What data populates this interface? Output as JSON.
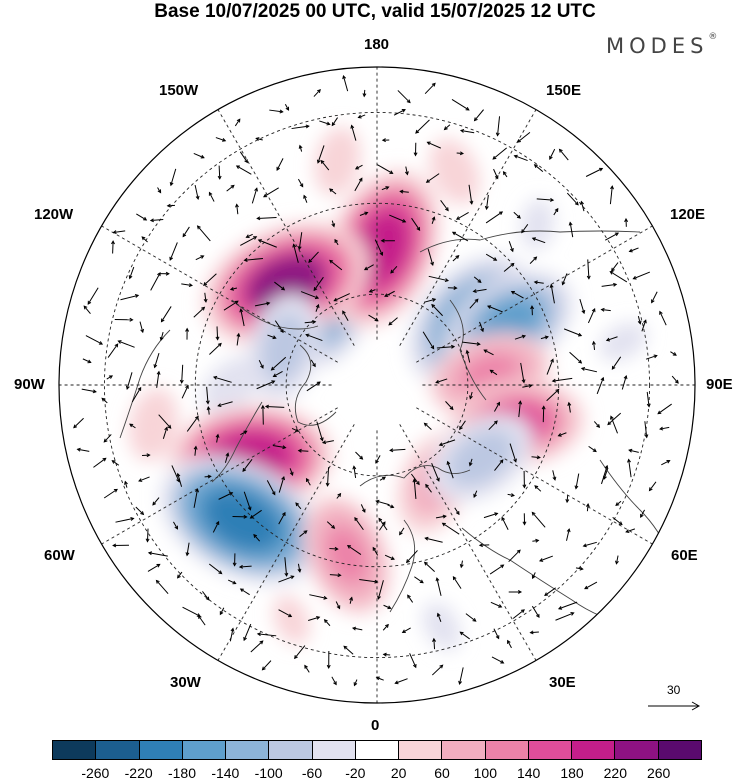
{
  "title": "Base 10/07/2025 00 UTC, valid 15/07/2025 12 UTC",
  "brand": "MODES",
  "brand_mark": "®",
  "longitude_labels": {
    "top": "180",
    "bottom": "0",
    "left": "90W",
    "right": "90E",
    "upper_left": "150W",
    "upper_right": "150E",
    "mid_upper_left": "120W",
    "mid_upper_right": "120E",
    "mid_lower_left": "60W",
    "mid_lower_right": "60E",
    "lower_left": "30W",
    "lower_right": "30E"
  },
  "vector_scale": {
    "value": "30",
    "icon": "arrow-right-icon"
  },
  "colorbar": {
    "colors": [
      "#0d3a5c",
      "#1c5e8f",
      "#2f7fb6",
      "#5f9fcc",
      "#8db4d8",
      "#bcc8e2",
      "#e2e2f0",
      "#ffffff",
      "#f8d4d8",
      "#f2aec0",
      "#ec82a8",
      "#e04d9a",
      "#c41e8a",
      "#8e1282",
      "#5a0a6e"
    ],
    "labels": [
      "-260",
      "-220",
      "-180",
      "-140",
      "-100",
      "-60",
      "-20",
      "20",
      "60",
      "100",
      "140",
      "180",
      "220",
      "260"
    ]
  },
  "anomalies": [
    {
      "lon": -150,
      "lat": 68,
      "value": -150
    },
    {
      "lon": 178,
      "lat": 60,
      "value": 200
    },
    {
      "lon": -138,
      "lat": 60,
      "value": 220
    },
    {
      "lon": 125,
      "lat": 65,
      "value": -170
    },
    {
      "lon": 115,
      "lat": 58,
      "value": -150
    },
    {
      "lon": 95,
      "lat": 65,
      "value": 120
    },
    {
      "lon": 75,
      "lat": 58,
      "value": 140
    },
    {
      "lon": -112,
      "lat": 68,
      "value": -90
    },
    {
      "lon": -90,
      "lat": 58,
      "value": -40
    },
    {
      "lon": -60,
      "lat": 58,
      "value": 200
    },
    {
      "lon": -45,
      "lat": 48,
      "value": -220
    },
    {
      "lon": -10,
      "lat": 52,
      "value": 120
    },
    {
      "lon": 30,
      "lat": 65,
      "value": 80
    },
    {
      "lon": 55,
      "lat": 62,
      "value": -100
    },
    {
      "lon": -80,
      "lat": 40,
      "value": 50
    },
    {
      "lon": 160,
      "lat": 40,
      "value": 40
    },
    {
      "lon": -170,
      "lat": 40,
      "value": 40
    },
    {
      "lon": 135,
      "lat": 40,
      "value": -30
    },
    {
      "lon": 15,
      "lat": 35,
      "value": -30
    },
    {
      "lon": -20,
      "lat": 35,
      "value": 30
    },
    {
      "lon": 100,
      "lat": 35,
      "value": -30
    }
  ]
}
